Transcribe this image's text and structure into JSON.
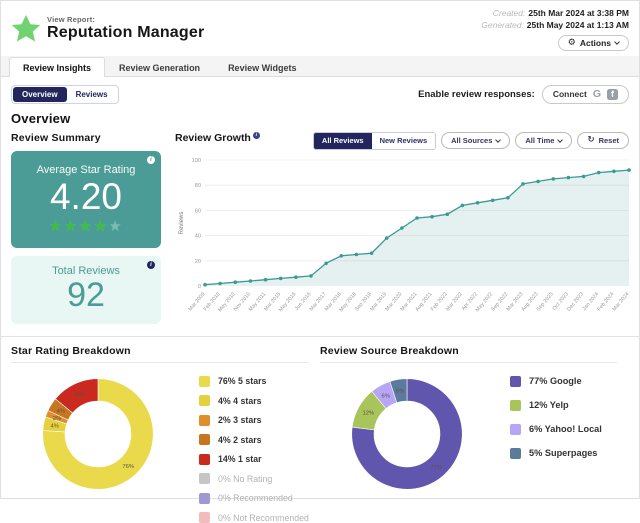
{
  "header": {
    "view_report_label": "View Report:",
    "title": "Reputation Manager",
    "created_label": "Created:",
    "created_value": "25th Mar 2024 at 3:38 PM",
    "generated_label": "Generated:",
    "generated_value": "25th May 2024 at 1:13 AM",
    "actions_label": "Actions"
  },
  "tabs": [
    {
      "label": "Review Insights",
      "active": true
    },
    {
      "label": "Review Generation",
      "active": false
    },
    {
      "label": "Review Widgets",
      "active": false
    }
  ],
  "view_toggle": {
    "overview": "Overview",
    "reviews": "Reviews",
    "active": "Overview"
  },
  "review_responses": {
    "label": "Enable review responses:",
    "connect_label": "Connect"
  },
  "overview_heading": "Overview",
  "summary": {
    "heading": "Review Summary",
    "avg_label": "Average Star Rating",
    "avg_value": "4.20",
    "avg_stars_out_of_5": 4.2,
    "total_label": "Total Reviews",
    "total_value": "92"
  },
  "growth_filters": {
    "all_reviews": "All Reviews",
    "new_reviews": "New Reviews",
    "sources": "All Sources",
    "time": "All Time",
    "reset": "Reset"
  },
  "colors": {
    "accent_navy": "#23265c",
    "teal_card": "#4b9c96",
    "mint_card": "#e8f6f4",
    "star_green": "#3ebe3e",
    "logo_green": "#6fd36f",
    "line_teal": "#3a9a94"
  },
  "chart_data": [
    {
      "type": "line",
      "title": "Review Growth",
      "ylabel": "Reviews",
      "ylim": [
        0,
        100
      ],
      "yticks": [
        0,
        20,
        40,
        60,
        80,
        100
      ],
      "grid": true,
      "x": [
        "Mar 2009",
        "Feb 2010",
        "May 2010",
        "Nov 2010",
        "May 2011",
        "Mar 2015",
        "May 2016",
        "Jun 2016",
        "Mar 2017",
        "Mar 2018",
        "May 2018",
        "Sep 2018",
        "Mar 2019",
        "Mar 2020",
        "Mar 2021",
        "Aug 2021",
        "Feb 2022",
        "Mar 2022",
        "Apr 2022",
        "May 2022",
        "Sep 2022",
        "Mar 2023",
        "Aug 2023",
        "Sep 2023",
        "Oct 2023",
        "Dec 2023",
        "Jan 2024",
        "Feb 2024",
        "Mar 2024"
      ],
      "values": [
        1,
        2,
        3,
        4,
        5,
        6,
        7,
        8,
        18,
        24,
        25,
        26,
        38,
        46,
        54,
        55,
        57,
        64,
        66,
        68,
        70,
        81,
        83,
        85,
        86,
        87,
        90,
        91,
        92
      ],
      "line_color": "#3a9a94",
      "fill_color": "rgba(77,158,152,0.15)"
    },
    {
      "type": "pie",
      "title": "Star Rating Breakdown",
      "legend_position": "right",
      "slices": [
        {
          "label": "5 stars",
          "pct": 76,
          "color": "#e9d94b"
        },
        {
          "label": "4 stars",
          "pct": 4,
          "color": "#e5d13e"
        },
        {
          "label": "3 stars",
          "pct": 2,
          "color": "#e08e2d"
        },
        {
          "label": "2 stars",
          "pct": 4,
          "color": "#c7761f"
        },
        {
          "label": "1 star",
          "pct": 14,
          "color": "#c9291f"
        },
        {
          "label": "No Rating",
          "pct": 0,
          "color": "#c6c6c6"
        },
        {
          "label": "Recommended",
          "pct": 0,
          "color": "#9e99d1"
        },
        {
          "label": "Not Recommended",
          "pct": 0,
          "color": "#f2bcbc"
        }
      ]
    },
    {
      "type": "pie",
      "title": "Review Source Breakdown",
      "legend_position": "right",
      "slices": [
        {
          "label": "Google",
          "pct": 77,
          "color": "#6156ae"
        },
        {
          "label": "Yelp",
          "pct": 12,
          "color": "#a9c45a"
        },
        {
          "label": "Yahoo! Local",
          "pct": 6,
          "color": "#b7a6f6"
        },
        {
          "label": "Superpages",
          "pct": 5,
          "color": "#5b7b9d"
        }
      ]
    }
  ]
}
